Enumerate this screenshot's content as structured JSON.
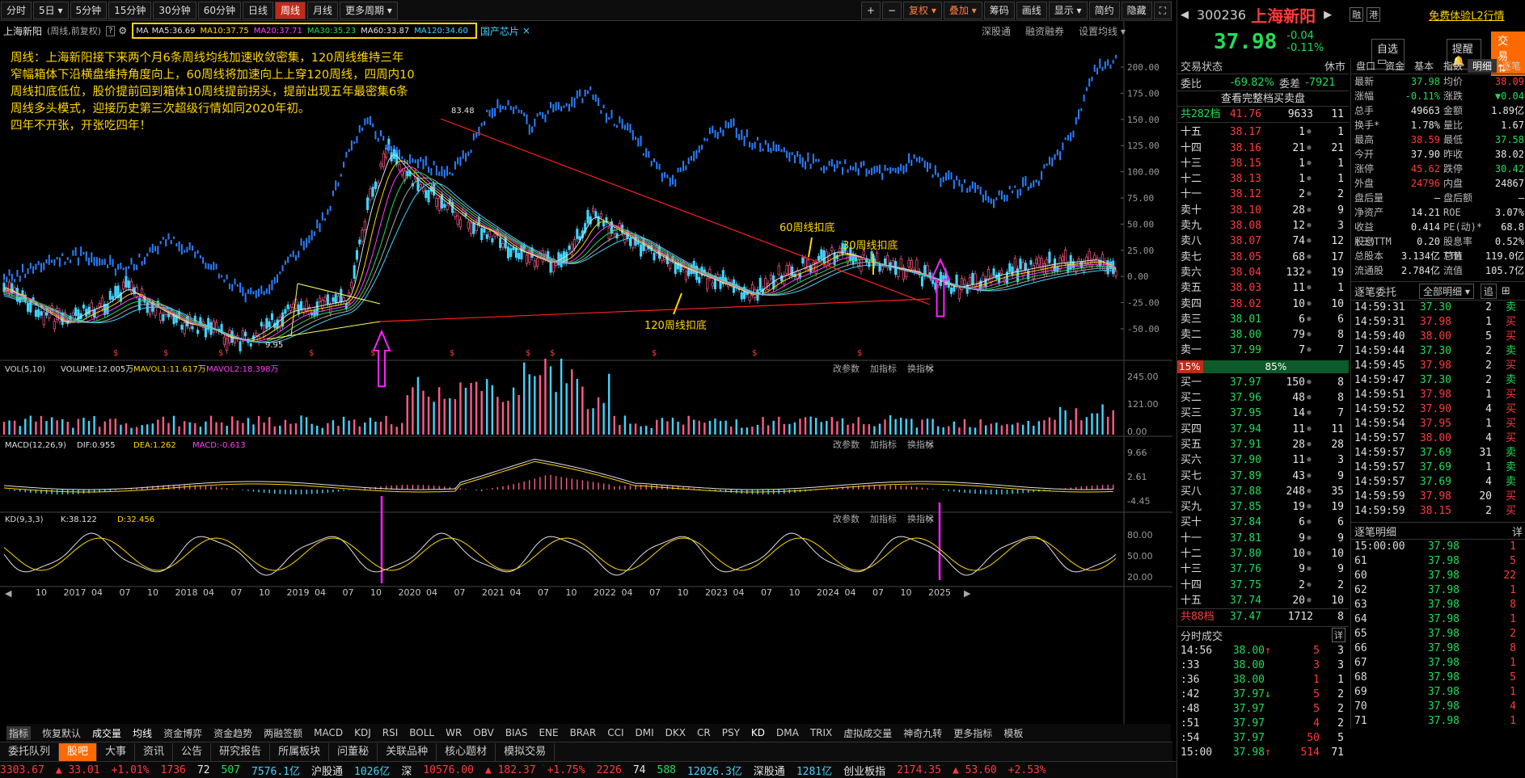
{
  "toolbar": {
    "items": [
      "分时",
      "5日",
      "5分钟",
      "15分钟",
      "30分钟",
      "60分钟",
      "日线",
      "周线",
      "月线",
      "更多周期"
    ],
    "active": "周线",
    "right": [
      "复权",
      "叠加",
      "筹码",
      "画线",
      "显示",
      "简约",
      "隐藏"
    ]
  },
  "chart_header": {
    "name": "上海新阳",
    "mode": "(周线,前复权)",
    "ma_label": "MA",
    "ma": [
      {
        "t": "MA5:36.69",
        "c": "#e0e0e0"
      },
      {
        "t": "MA10:37.75",
        "c": "#ffd700"
      },
      {
        "t": "MA20:37.71",
        "c": "#ff40ff"
      },
      {
        "t": "MA30:35.23",
        "c": "#22dd55"
      },
      {
        "t": "MA60:33.87",
        "c": "#e0e0e0"
      },
      {
        "t": "MA120:34.60",
        "c": "#3fd4ff"
      }
    ],
    "concept": "国产芯片",
    "links": [
      "深股通",
      "融资融券",
      "设置均线"
    ]
  },
  "annotation": {
    "lines": [
      "周线：上海新阳接下来两个月6条周线均线加速收敛密集，120周线维持三年",
      "窄幅箱体下沿横盘维持角度向上，60周线将加速向上上穿120周线，四周内10",
      "周线扣底低位，股价提前回到箱体10周线提前拐头，提前出现五年最密集6条",
      "周线多头模式，迎接历史第三次超级行情如同2020年初。",
      "四年不开张，开张吃四年！"
    ]
  },
  "labels": {
    "ma60": "60周线扣底",
    "ma30": "30周线扣底",
    "ma120": "120周线扣底",
    "high": "83.48",
    "low": "9.95"
  },
  "price_axis": [
    "200.00",
    "175.00",
    "150.00",
    "125.00",
    "100.00",
    "75.00",
    "50.00",
    "25.00",
    "0.00",
    "-25.00",
    "-50.00"
  ],
  "vol": {
    "header": "VOL(5,10)",
    "volume": "VOLUME:12.005万",
    "mavol1": "MAVOL1:11.617万",
    "mavol2": "MAVOL2:18.398万",
    "axis": [
      "245.00",
      "121.00",
      "0.00"
    ]
  },
  "macd": {
    "header": "MACD(12,26,9)",
    "dif": "DIF:0.955",
    "dea": "DEA:1.262",
    "macd": "MACD:-0.613",
    "axis": [
      "9.66",
      "2.61",
      "-4.45"
    ]
  },
  "kd": {
    "header": "KD(9,3,3)",
    "k": "K:38.122",
    "d": "D:32.456",
    "axis": [
      "80.00",
      "50.00",
      "20.00"
    ]
  },
  "panel_links": [
    "改参数",
    "加指标",
    "换指标"
  ],
  "xaxis": [
    "10",
    "2017",
    "04",
    "07",
    "10",
    "2018",
    "04",
    "07",
    "10",
    "2019",
    "04",
    "07",
    "10",
    "2020",
    "04",
    "07",
    "2021",
    "04",
    "07",
    "10",
    "2022",
    "04",
    "07",
    "10",
    "2023",
    "04",
    "07",
    "10",
    "2024",
    "04",
    "07",
    "10",
    "2025"
  ],
  "indicator_tabs": [
    "指标",
    "恢复默认",
    "成交量",
    "均线",
    "资金博弈",
    "资金趋势",
    "两融签额",
    "MACD",
    "KDJ",
    "RSI",
    "BOLL",
    "WR",
    "OBV",
    "BIAS",
    "ENE",
    "BRAR",
    "CCI",
    "DMI",
    "DKX",
    "CR",
    "PSY",
    "KD",
    "DMA",
    "TRIX",
    "虚拟成交量",
    "神奇九转",
    "更多指标",
    "模板"
  ],
  "bottom_tabs": [
    "委托队列",
    "股吧",
    "大事",
    "资讯",
    "公告",
    "研究报告",
    "所属板块",
    "问董秘",
    "关联品种",
    "核心题材",
    "模拟交易"
  ],
  "stock": {
    "code": "300236",
    "name": "上海新阳",
    "price": "37.98",
    "change": "-0.04",
    "pct": "-0.11%",
    "btn1": "融",
    "btn2": "港",
    "trial": "免费体验L2行情",
    "self": "自选",
    "alert": "提醒",
    "trade": "交易"
  },
  "order_status": {
    "title": "交易状态",
    "state": "休市",
    "wb": "委比",
    "wb_v": "-69.82%",
    "wc": "委差",
    "wc_v": "-7921",
    "full": "查看完整档买卖盘",
    "total_sell": "共282档",
    "total_sell_p": "41.76",
    "total_sell_v": "9633",
    "total_sell_n": "11"
  },
  "sells": [
    [
      "十五",
      "38.17",
      "1",
      "1"
    ],
    [
      "十四",
      "38.16",
      "21",
      "21"
    ],
    [
      "十三",
      "38.15",
      "1",
      "1"
    ],
    [
      "十二",
      "38.13",
      "1",
      "1"
    ],
    [
      "十一",
      "38.12",
      "2",
      "2"
    ],
    [
      "卖十",
      "38.10",
      "28",
      "9"
    ],
    [
      "卖九",
      "38.08",
      "12",
      "3"
    ],
    [
      "卖八",
      "38.07",
      "74",
      "12"
    ],
    [
      "卖七",
      "38.05",
      "68",
      "17"
    ],
    [
      "卖六",
      "38.04",
      "132",
      "19"
    ],
    [
      "卖五",
      "38.03",
      "11",
      "1"
    ],
    [
      "卖四",
      "38.02",
      "10",
      "10"
    ],
    [
      "卖三",
      "38.01",
      "6",
      "6"
    ],
    [
      "卖二",
      "38.00",
      "79",
      "8"
    ],
    [
      "卖一",
      "37.99",
      "7",
      "7"
    ]
  ],
  "ratio": {
    "left": "15%",
    "right": "85%"
  },
  "buys": [
    [
      "买一",
      "37.97",
      "150",
      "8"
    ],
    [
      "买二",
      "37.96",
      "48",
      "8"
    ],
    [
      "买三",
      "37.95",
      "14",
      "7"
    ],
    [
      "买四",
      "37.94",
      "11",
      "11"
    ],
    [
      "买五",
      "37.91",
      "28",
      "28"
    ],
    [
      "买六",
      "37.90",
      "11",
      "3"
    ],
    [
      "买七",
      "37.89",
      "43",
      "9"
    ],
    [
      "买八",
      "37.88",
      "248",
      "35"
    ],
    [
      "买九",
      "37.85",
      "19",
      "19"
    ],
    [
      "买十",
      "37.84",
      "6",
      "6"
    ],
    [
      "十一",
      "37.81",
      "9",
      "9"
    ],
    [
      "十二",
      "37.80",
      "10",
      "10"
    ],
    [
      "十三",
      "37.76",
      "9",
      "9"
    ],
    [
      "十四",
      "37.75",
      "2",
      "2"
    ],
    [
      "十五",
      "37.74",
      "20",
      "10"
    ]
  ],
  "total_buy": {
    "label": "共88档",
    "p": "37.47",
    "v": "1712",
    "n": "8"
  },
  "ticks_title": "分时成交",
  "detail": "详",
  "ticks": [
    [
      "14:56",
      "38.00",
      "↑",
      "5",
      "3"
    ],
    [
      ":33",
      "38.00",
      "",
      "3",
      "3"
    ],
    [
      ":36",
      "38.00",
      "",
      "1",
      "1"
    ],
    [
      ":42",
      "37.97",
      "↓",
      "5",
      "2"
    ],
    [
      ":48",
      "37.97",
      "",
      "5",
      "2"
    ],
    [
      ":51",
      "37.97",
      "",
      "4",
      "2"
    ],
    [
      ":54",
      "37.97",
      "",
      "50",
      "5"
    ],
    [
      "15:00",
      "37.98",
      "↑",
      "514",
      "71"
    ]
  ],
  "quote_tabs": [
    "盘口",
    "资金",
    "基本",
    "指数",
    "明细",
    "逐笔"
  ],
  "quote": [
    [
      "最新",
      "37.98",
      "均价",
      "38.09"
    ],
    [
      "涨幅",
      "-0.11%",
      "涨跌",
      "▼0.04"
    ],
    [
      "总手",
      "49663",
      "金额",
      "1.89亿"
    ],
    [
      "换手*",
      "1.78%",
      "量比",
      "1.67"
    ],
    [
      "最高",
      "38.59",
      "最低",
      "37.58"
    ],
    [
      "今开",
      "37.90",
      "昨收",
      "38.02"
    ],
    [
      "涨停",
      "45.62",
      "跌停",
      "30.42"
    ],
    [
      "外盘",
      "24796",
      "内盘",
      "24867"
    ],
    [
      "盘后量",
      "—",
      "盘后额",
      "—"
    ],
    [
      "净资产",
      "14.21",
      "ROE",
      "3.07%"
    ],
    [
      "收益(三)",
      "0.414",
      "PE(动)*",
      "68.8"
    ],
    [
      "股息TTM",
      "0.20",
      "股息率TTM",
      "0.52%"
    ],
    [
      "总股本",
      "3.134亿",
      "总值",
      "119.0亿"
    ],
    [
      "流通股",
      "2.784亿",
      "流值",
      "105.7亿"
    ]
  ],
  "zb_title": "逐笔委托",
  "zb_sel": "全部明细",
  "zb_btn": "追",
  "zb": [
    [
      "14:59:31",
      "37.30",
      "2",
      "卖"
    ],
    [
      "14:59:31",
      "37.98",
      "1",
      "买"
    ],
    [
      "14:59:40",
      "38.00",
      "5",
      "买"
    ],
    [
      "14:59:44",
      "37.30",
      "2",
      "卖"
    ],
    [
      "14:59:45",
      "37.98",
      "2",
      "买"
    ],
    [
      "14:59:47",
      "37.30",
      "2",
      "卖"
    ],
    [
      "14:59:51",
      "37.98",
      "1",
      "买"
    ],
    [
      "14:59:52",
      "37.90",
      "4",
      "买"
    ],
    [
      "14:59:54",
      "37.95",
      "1",
      "买"
    ],
    [
      "14:59:57",
      "38.00",
      "4",
      "买"
    ],
    [
      "14:59:57",
      "37.69",
      "31",
      "卖"
    ],
    [
      "14:59:57",
      "37.69",
      "1",
      "卖"
    ],
    [
      "14:59:57",
      "37.69",
      "4",
      "卖"
    ],
    [
      "14:59:59",
      "37.98",
      "20",
      "买"
    ],
    [
      "14:59:59",
      "38.15",
      "2",
      "买"
    ]
  ],
  "zbmx_title": "逐笔明细",
  "zbmx": [
    [
      "15:00:00",
      "37.98",
      "1"
    ],
    [
      "61",
      "37.98",
      "5"
    ],
    [
      "60",
      "37.98",
      "22"
    ],
    [
      "62",
      "37.98",
      "1"
    ],
    [
      "63",
      "37.98",
      "8"
    ],
    [
      "64",
      "37.98",
      "1"
    ],
    [
      "65",
      "37.98",
      "2"
    ],
    [
      "66",
      "37.98",
      "8"
    ],
    [
      "67",
      "37.98",
      "1"
    ],
    [
      "68",
      "37.98",
      "5"
    ],
    [
      "69",
      "37.98",
      "1"
    ],
    [
      "70",
      "37.98",
      "4"
    ],
    [
      "71",
      "37.98",
      "1"
    ]
  ],
  "status": {
    "sh": "3303.67",
    "sh_c": "▲ 33.01",
    "sh_p": "+1.01%",
    "sh_n1": "1736",
    "sh_n2": "72",
    "sh_n3": "507",
    "sh_amt": "7576.1亿",
    "hgt": "沪股通",
    "hgt_v": "1026亿",
    "sz": "深",
    "sz_v": "10576.00",
    "sz_c": "▲ 182.37",
    "sz_p": "+1.75%",
    "sz_n1": "2226",
    "sz_n2": "74",
    "sz_n3": "588",
    "sz_amt": "12026.3亿",
    "sgt": "深股通",
    "sgt_v": "1281亿",
    "cy": "创业板指",
    "cy_v": "2174.35",
    "cy_c": "▲ 53.60",
    "cy_p": "+2.53%"
  }
}
